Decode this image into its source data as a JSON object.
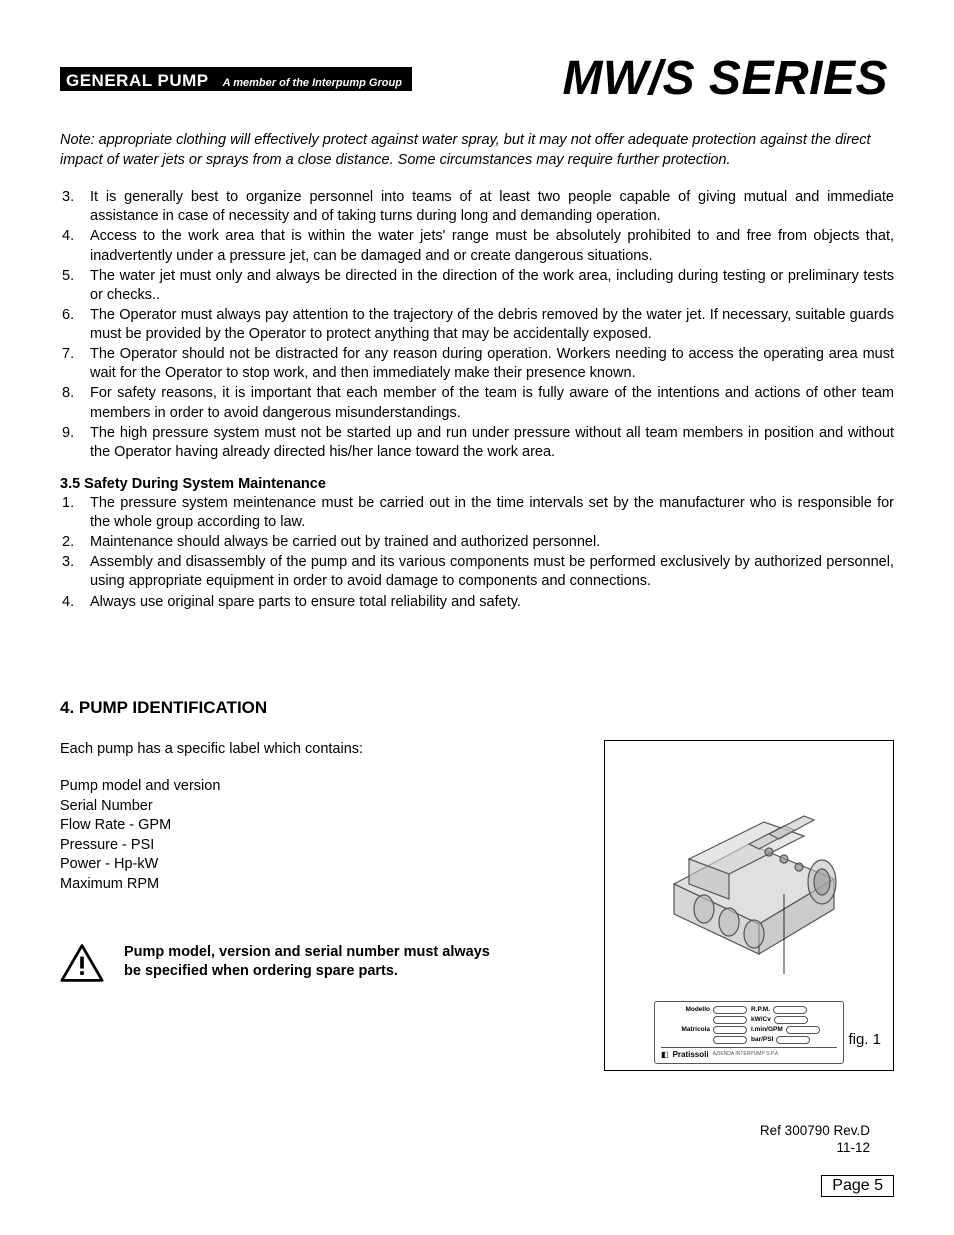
{
  "header": {
    "brand": "GENERAL PUMP",
    "tagline": "A member of the Interpump Group",
    "series": "MW/S SERIES"
  },
  "note": "Note: appropriate clothing will effectively protect against water spray, but it may not offer adequate protection against the direct impact of water jets or sprays from a close distance. Some circumstances may require further protection.",
  "list1": [
    {
      "n": "3.",
      "t": "It is generally best to organize personnel into teams of at least two people capable of giving mutual and immediate assistance in case of necessity and of taking turns during long and demanding operation."
    },
    {
      "n": "4.",
      "t": "Access to the work area that is within the water jets' range must be absolutely prohibited to and free from objects that, inadvertently under a pressure jet, can be damaged and or create dangerous situations."
    },
    {
      "n": "5.",
      "t": "The water jet must only and always be directed in the direction of the work area, including during testing or preliminary tests or checks.."
    },
    {
      "n": "6.",
      "t": "The Operator must always pay attention to the trajectory of the debris removed by the water jet. If necessary, suitable guards must be provided by the Operator to protect anything that may be accidentally exposed."
    },
    {
      "n": "7.",
      "t": "The Operator should not be distracted for any reason during operation. Workers needing to access the operating area must wait for the Operator to stop work, and then immediately make their presence known."
    },
    {
      "n": "8.",
      "t": "For safety reasons, it is important that each member of  the team is fully aware of the intentions and actions   of other team members in order to avoid dangerous misunderstandings."
    },
    {
      "n": "9.",
      "t": "The high pressure system must not be started up and run under pressure without all team members in position and without the Operator having already directed his/her lance toward the work area."
    }
  ],
  "sub35": "3.5 Safety During System Maintenance",
  "list2": [
    {
      "n": "1.",
      "t": "The pressure system meintenance must be carried out in the time intervals set by the manufacturer who is responsible for the whole group according to law."
    },
    {
      "n": "2.",
      "t": "Maintenance should always be carried out by trained and authorized personnel."
    },
    {
      "n": "3.",
      "t": "Assembly and disassembly of the pump and its various components must be performed exclusively by authorized personnel, using appropriate equipment in order to avoid damage to components and connections."
    },
    {
      "n": "4.",
      "t": "Always use original spare parts to ensure total reliability and safety."
    }
  ],
  "section4": {
    "heading": "4. PUMP IDENTIFICATION",
    "intro": "Each pump has a specific label which contains:",
    "fields": [
      "Pump model and version",
      "Serial Number",
      "Flow Rate - GPM",
      "Pressure - PSI",
      "Power - Hp-kW",
      "Maximum RPM"
    ],
    "warn": "Pump model, version and serial number must always be specified when ordering spare parts.",
    "fig_caption": "fig. 1",
    "plate": {
      "left": [
        "Modello",
        "",
        "Matricola",
        ""
      ],
      "right": [
        "R.P.M.",
        "kW/Cv",
        "l.min/GPM",
        "bar/PSI"
      ],
      "brand": "Pratissoli"
    }
  },
  "doc_ref": {
    "ref": "Ref 300790 Rev.D",
    "date": "11-12"
  },
  "page": "Page 5"
}
